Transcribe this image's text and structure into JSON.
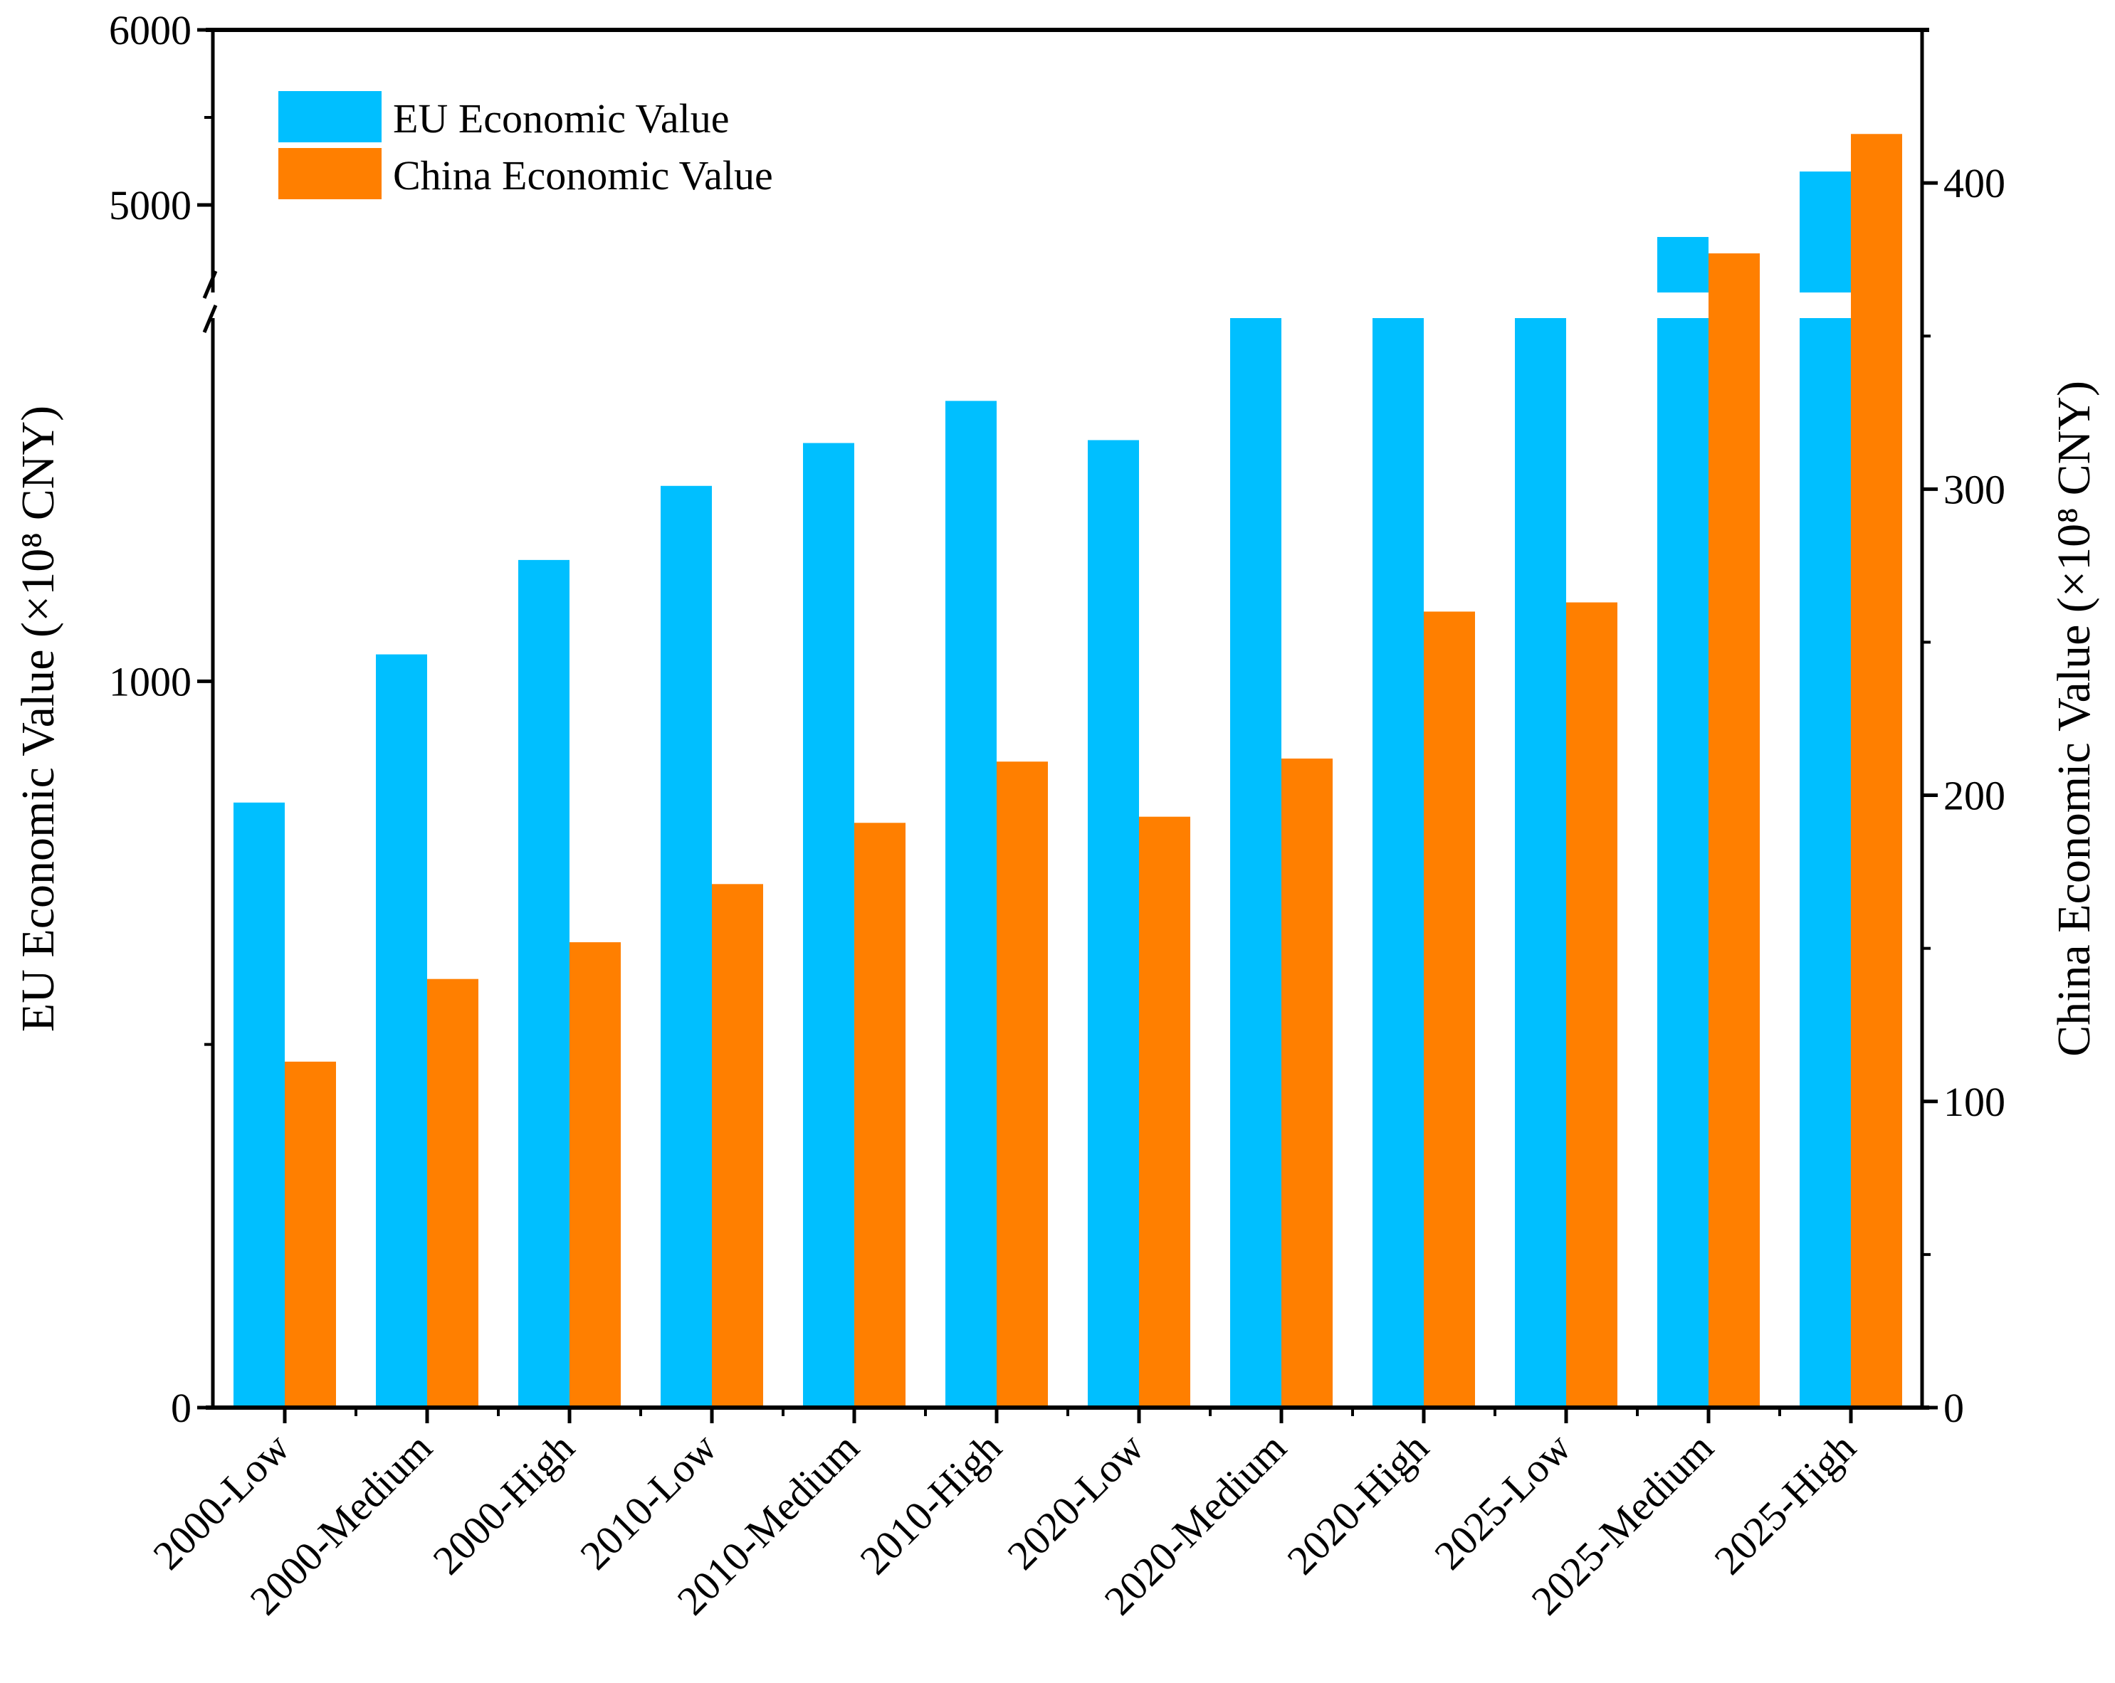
{
  "chart_data": {
    "type": "bar",
    "categories": [
      "2000-Low",
      "2000-Medium",
      "2000-High",
      "2010-Low",
      "2010-Medium",
      "2010-High",
      "2020-Low",
      "2020-Medium",
      "2020-High",
      "2025-Low",
      "2025-Medium",
      "2025-High"
    ],
    "series": [
      {
        "name": "EU Economic Value",
        "axis": "left",
        "color": "#00BFFF",
        "values": [
          833,
          1037,
          1167,
          1269,
          1328,
          1386,
          1332,
          1550,
          1550,
          1550,
          4817,
          5191
        ]
      },
      {
        "name": "China Economic Value",
        "axis": "right",
        "color": "#FF7F00",
        "values": [
          113,
          140,
          152,
          171,
          191,
          211,
          193,
          212,
          260,
          263,
          377,
          416
        ]
      }
    ],
    "ylabel_left": "EU Economic Value (×10⁸ CNY)",
    "ylabel_right": "China Economic Value (×10⁸ CNY)",
    "left_axis": {
      "broken": true,
      "lower_range": [
        0,
        1500
      ],
      "upper_range": [
        4500,
        6000
      ],
      "tick_labels": [
        "0",
        "1000",
        "5000",
        "6000"
      ]
    },
    "right_axis": {
      "range": [
        0,
        450
      ],
      "tick_labels": [
        "0",
        "100",
        "200",
        "300",
        "400"
      ]
    },
    "legend": {
      "position": "top-left",
      "entries": [
        "EU Economic Value",
        "China Economic Value"
      ]
    },
    "grid": false
  }
}
